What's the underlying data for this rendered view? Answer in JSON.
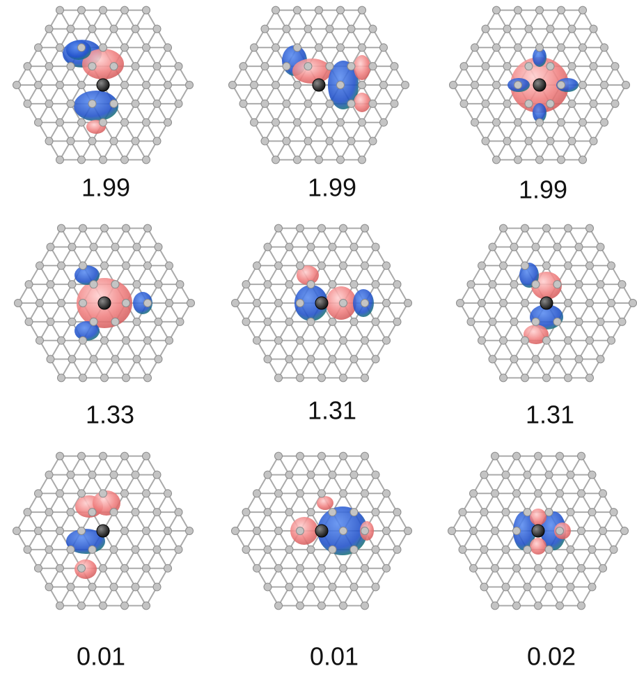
{
  "panels": [
    {
      "label": "1.99"
    },
    {
      "label": "1.99"
    },
    {
      "label": "1.99"
    },
    {
      "label": "1.33"
    },
    {
      "label": "1.31"
    },
    {
      "label": "1.31"
    },
    {
      "label": "0.01"
    },
    {
      "label": "0.01"
    },
    {
      "label": "0.02"
    }
  ]
}
